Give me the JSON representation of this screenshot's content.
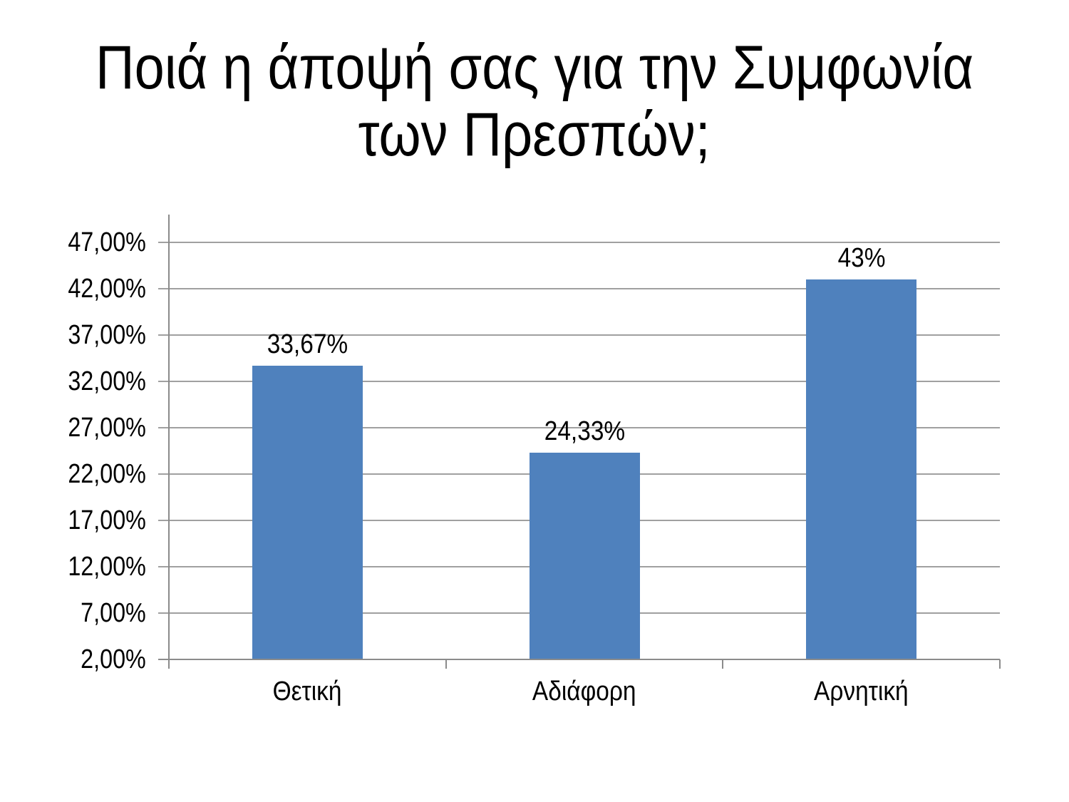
{
  "title": {
    "text": "Ποιά η άποψή σας για την Συμφωνία των Πρεσπών;",
    "lines": [
      "Ποιά η άποψή σας για την Συμφωνία",
      "των Πρεσπών;"
    ]
  },
  "chart_data": {
    "type": "bar",
    "title": "Ποιά η άποψή σας για την Συμφωνία των Πρεσπών;",
    "categories": [
      "Θετική",
      "Αδιάφορη",
      "Αρνητική"
    ],
    "values": [
      33.67,
      24.33,
      43
    ],
    "data_labels": [
      "33,67%",
      "24,33%",
      "43%"
    ],
    "xlabel": "",
    "ylabel": "",
    "ylim": [
      2,
      50
    ],
    "ytick_step": 5,
    "yticks": [
      2,
      7,
      12,
      17,
      22,
      27,
      32,
      37,
      42,
      47
    ],
    "ytick_labels": [
      "2,00%",
      "7,00%",
      "12,00%",
      "17,00%",
      "22,00%",
      "27,00%",
      "32,00%",
      "37,00%",
      "42,00%",
      "47,00%"
    ],
    "grid": true,
    "legend": false,
    "bar_color": "#4F81BD",
    "gridline_color": "#a0a0a0",
    "axis_color": "#8b8b8b",
    "text_color": "#000000",
    "background_color": "#ffffff"
  }
}
